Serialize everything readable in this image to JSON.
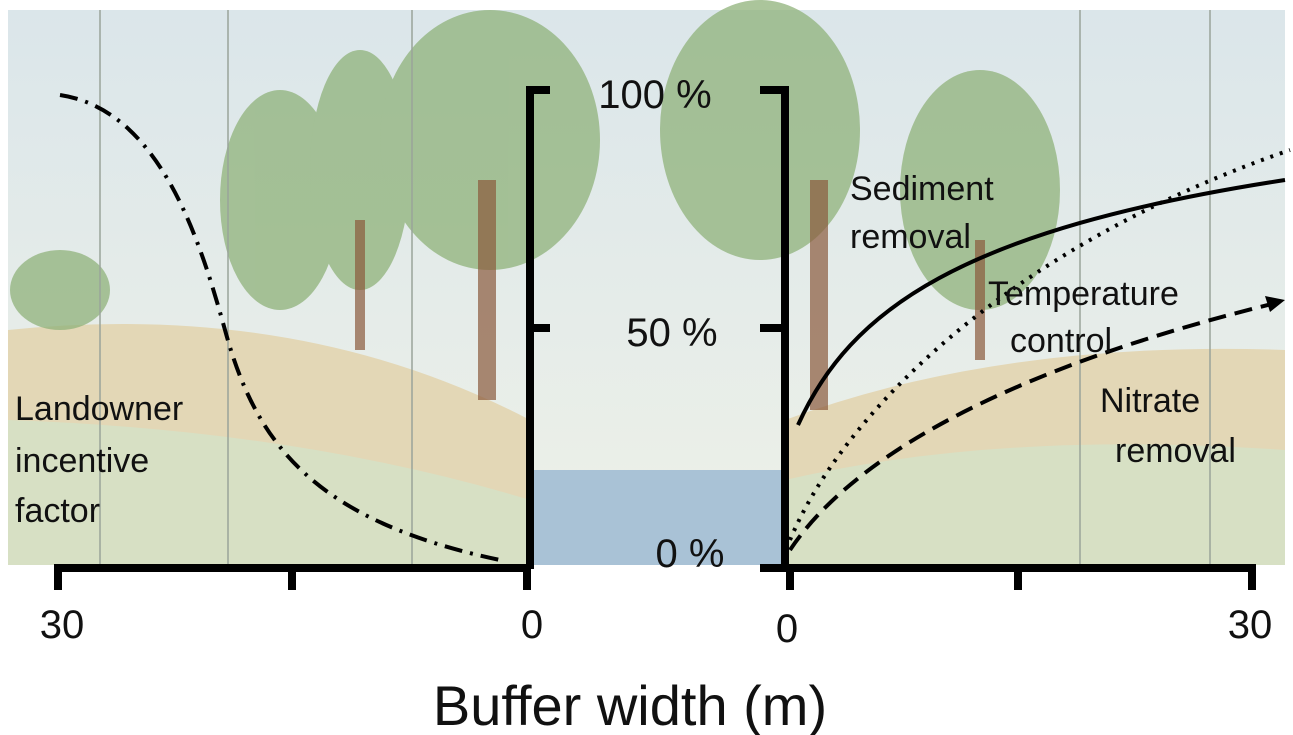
{
  "vertical_axis": {
    "ticks": [
      "100 %",
      "50 %",
      "0 %"
    ]
  },
  "horizontal_axis": {
    "left_ticks": [
      "30",
      "0"
    ],
    "right_ticks": [
      "0",
      "30"
    ],
    "title": "Buffer width (m)"
  },
  "curves": [
    {
      "label_lines": [
        "Landowner",
        "incentive",
        "factor"
      ]
    },
    {
      "label_lines": [
        "Sediment",
        "removal"
      ]
    },
    {
      "label_lines": [
        "Temperature",
        "control"
      ]
    },
    {
      "label_lines": [
        "Nitrate",
        "removal"
      ]
    }
  ]
}
